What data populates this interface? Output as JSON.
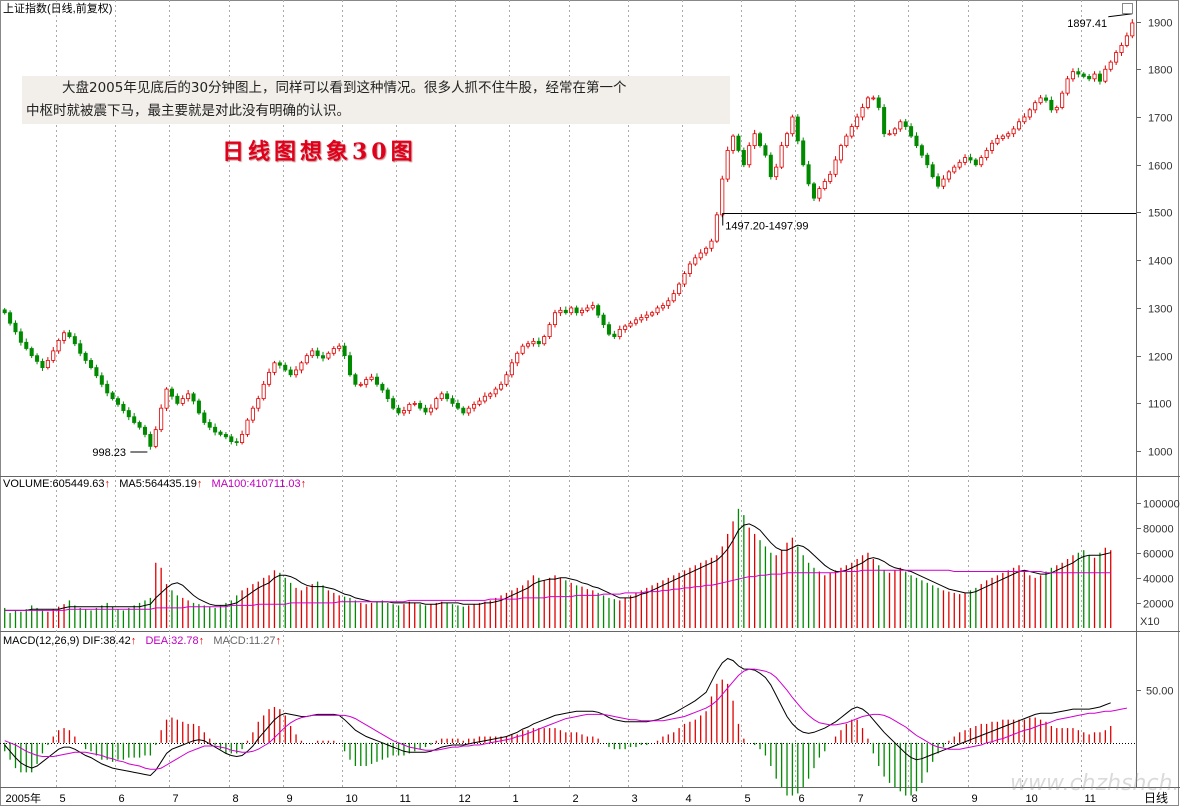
{
  "header": {
    "title": "上证指数(日线,前复权)",
    "note_line1": "大盘2005年见底后的30分钟图上，同样可以看到这种情况。很多人抓不住牛股，经常在第一个",
    "note_line2": "中枢时就被震下马，最主要就是对此没有明确的认识。",
    "red_title": "日线图想象30图"
  },
  "volume_info": {
    "volume": "VOLUME:605449.63",
    "ma5": "MA5:564435.19",
    "ma100": "MA100:410711.03"
  },
  "macd_info": {
    "name": "MACD(12,26,9)",
    "dif": "DIF:38.42",
    "dea": "DEA:32.78",
    "macd": "MACD:11.27"
  },
  "watermark": "www.chzhshch.net",
  "chart_data": [
    {
      "type": "candlestick",
      "ylim": [
        950,
        1920
      ],
      "yticks": [
        1000,
        1100,
        1200,
        1300,
        1400,
        1500,
        1600,
        1700,
        1800,
        1900
      ],
      "ytick_labels": [
        "1000",
        "1100",
        "1200",
        "1300",
        "1400",
        "1500",
        "1600",
        "1700",
        "1800",
        "1900"
      ],
      "annotations": [
        {
          "text": "998.23",
          "value": 998.23
        },
        {
          "text": "1897.41",
          "value": 1897.41
        },
        {
          "text": "1497.20-1497.99",
          "value": 1497.99
        }
      ],
      "close": [
        1290,
        1268,
        1250,
        1228,
        1215,
        1200,
        1188,
        1175,
        1190,
        1210,
        1232,
        1248,
        1240,
        1225,
        1205,
        1190,
        1175,
        1158,
        1140,
        1122,
        1110,
        1098,
        1085,
        1072,
        1060,
        1050,
        1035,
        1010,
        1045,
        1090,
        1130,
        1115,
        1100,
        1110,
        1120,
        1105,
        1080,
        1060,
        1050,
        1040,
        1035,
        1030,
        1020,
        1018,
        1035,
        1065,
        1090,
        1110,
        1140,
        1165,
        1185,
        1180,
        1170,
        1160,
        1170,
        1185,
        1200,
        1210,
        1200,
        1195,
        1205,
        1215,
        1220,
        1200,
        1160,
        1140,
        1140,
        1150,
        1155,
        1140,
        1128,
        1110,
        1090,
        1080,
        1085,
        1098,
        1100,
        1090,
        1082,
        1090,
        1110,
        1120,
        1110,
        1100,
        1090,
        1080,
        1090,
        1098,
        1105,
        1115,
        1120,
        1130,
        1140,
        1160,
        1185,
        1205,
        1220,
        1225,
        1230,
        1225,
        1240,
        1265,
        1290,
        1295,
        1290,
        1300,
        1290,
        1295,
        1300,
        1305,
        1285,
        1265,
        1245,
        1240,
        1255,
        1262,
        1268,
        1275,
        1280,
        1285,
        1290,
        1300,
        1305,
        1315,
        1330,
        1350,
        1372,
        1392,
        1405,
        1415,
        1425,
        1440,
        1495,
        1570,
        1630,
        1660,
        1630,
        1600,
        1640,
        1665,
        1640,
        1620,
        1575,
        1595,
        1640,
        1665,
        1700,
        1650,
        1600,
        1560,
        1530,
        1550,
        1565,
        1580,
        1610,
        1640,
        1660,
        1680,
        1700,
        1720,
        1740,
        1740,
        1720,
        1665,
        1665,
        1675,
        1690,
        1680,
        1660,
        1640,
        1620,
        1600,
        1575,
        1555,
        1570,
        1585,
        1595,
        1605,
        1615,
        1610,
        1600,
        1615,
        1630,
        1645,
        1655,
        1660,
        1665,
        1675,
        1690,
        1700,
        1715,
        1730,
        1740,
        1735,
        1715,
        1720,
        1750,
        1780,
        1795,
        1790,
        1785,
        1780,
        1790,
        1775,
        1800,
        1815,
        1835,
        1850,
        1870,
        1897
      ]
    },
    {
      "type": "bar",
      "ylim": [
        0,
        110000
      ],
      "yticks": [
        20000,
        40000,
        60000,
        80000,
        100000
      ],
      "ytick_labels": [
        "20000",
        "40000",
        "60000",
        "80000",
        "100000"
      ],
      "unit_label": "X10",
      "series": [
        {
          "name": "VOLUME",
          "value": 605449.63
        },
        {
          "name": "MA5",
          "value": 564435.19
        },
        {
          "name": "MA100",
          "value": 410711.03
        }
      ],
      "volume": [
        16,
        12,
        14,
        13,
        15,
        18,
        16,
        14,
        13,
        15,
        17,
        19,
        22,
        18,
        16,
        15,
        14,
        16,
        18,
        20,
        17,
        15,
        14,
        16,
        18,
        20,
        22,
        24,
        52,
        48,
        35,
        30,
        26,
        24,
        22,
        20,
        19,
        18,
        17,
        16,
        18,
        20,
        22,
        26,
        30,
        32,
        35,
        37,
        40,
        42,
        46,
        44,
        40,
        36,
        32,
        30,
        33,
        35,
        37,
        34,
        30,
        28,
        26,
        25,
        24,
        22,
        20,
        19,
        20,
        21,
        22,
        20,
        19,
        18,
        19,
        21,
        20,
        19,
        18,
        19,
        20,
        21,
        20,
        19,
        18,
        17,
        18,
        19,
        20,
        21,
        22,
        24,
        26,
        28,
        30,
        32,
        34,
        38,
        42,
        40,
        38,
        40,
        42,
        40,
        38,
        36,
        34,
        33,
        31,
        30,
        28,
        26,
        24,
        23,
        22,
        24,
        26,
        28,
        30,
        32,
        34,
        36,
        38,
        40,
        42,
        44,
        46,
        48,
        50,
        52,
        54,
        56,
        58,
        65,
        75,
        85,
        95,
        90,
        80,
        75,
        70,
        65,
        60,
        58,
        62,
        68,
        72,
        65,
        58,
        52,
        48,
        45,
        42,
        44,
        46,
        48,
        50,
        52,
        55,
        58,
        60,
        55,
        50,
        46,
        44,
        46,
        48,
        45,
        42,
        40,
        38,
        36,
        34,
        32,
        30,
        29,
        28,
        27,
        28,
        30,
        32,
        35,
        38,
        40,
        42,
        44,
        46,
        48,
        50,
        46,
        42,
        40,
        42,
        45,
        48,
        50,
        52,
        55,
        58,
        60,
        62,
        58,
        56,
        60,
        64,
        62
      ],
      "ma5_line": [
        14,
        14,
        14,
        14,
        14,
        15,
        15,
        15,
        15,
        15,
        15,
        16,
        17,
        17,
        17,
        17,
        17,
        17,
        17,
        17,
        17,
        17,
        17,
        17,
        17,
        17,
        18,
        19,
        24,
        28,
        32,
        35,
        36,
        34,
        30,
        26,
        23,
        21,
        19,
        18,
        18,
        18,
        19,
        20,
        23,
        26,
        29,
        32,
        34,
        36,
        40,
        42,
        42,
        41,
        39,
        36,
        34,
        33,
        33,
        33,
        32,
        31,
        29,
        27,
        26,
        24,
        23,
        22,
        21,
        21,
        21,
        21,
        20,
        20,
        20,
        20,
        20,
        20,
        19,
        19,
        19,
        20,
        20,
        20,
        20,
        19,
        19,
        19,
        19,
        20,
        20,
        21,
        22,
        24,
        26,
        28,
        30,
        32,
        35,
        37,
        38,
        39,
        39,
        40,
        40,
        39,
        38,
        36,
        35,
        33,
        32,
        30,
        28,
        26,
        24,
        24,
        24,
        25,
        27,
        28,
        30,
        32,
        34,
        36,
        38,
        40,
        42,
        44,
        46,
        48,
        50,
        52,
        54,
        58,
        63,
        70,
        78,
        82,
        83,
        81,
        78,
        73,
        68,
        64,
        62,
        62,
        64,
        66,
        65,
        62,
        58,
        54,
        50,
        47,
        45,
        45,
        46,
        48,
        50,
        52,
        55,
        56,
        55,
        53,
        50,
        48,
        47,
        46,
        45,
        43,
        41,
        39,
        37,
        35,
        33,
        31,
        30,
        29,
        28,
        28,
        29,
        31,
        33,
        35,
        37,
        39,
        41,
        43,
        45,
        46,
        45,
        44,
        43,
        43,
        44,
        46,
        48,
        50,
        52,
        55,
        57,
        58,
        58,
        58,
        59,
        60
      ],
      "ma100_line": [
        14,
        14,
        14,
        14,
        14,
        14,
        14,
        14,
        14,
        14,
        14,
        14,
        15,
        15,
        15,
        15,
        15,
        15,
        15,
        15,
        15,
        15,
        15,
        15,
        15,
        15,
        15,
        15,
        16,
        16,
        16,
        16,
        16,
        16,
        17,
        17,
        17,
        17,
        17,
        17,
        17,
        17,
        18,
        18,
        18,
        18,
        18,
        19,
        19,
        19,
        19,
        19,
        19,
        20,
        20,
        20,
        20,
        20,
        20,
        20,
        20,
        20,
        21,
        21,
        21,
        21,
        21,
        21,
        21,
        21,
        21,
        21,
        21,
        21,
        21,
        22,
        22,
        22,
        22,
        22,
        22,
        22,
        22,
        22,
        22,
        22,
        22,
        22,
        22,
        22,
        23,
        23,
        23,
        23,
        23,
        23,
        24,
        24,
        24,
        24,
        24,
        25,
        25,
        25,
        25,
        25,
        26,
        26,
        26,
        26,
        26,
        27,
        27,
        27,
        27,
        28,
        28,
        28,
        28,
        29,
        29,
        29,
        30,
        30,
        31,
        31,
        32,
        32,
        33,
        33,
        34,
        34,
        35,
        36,
        37,
        38,
        39,
        40,
        41,
        41,
        42,
        42,
        43,
        43,
        43,
        44,
        44,
        44,
        44,
        44,
        44,
        44,
        44,
        44,
        44,
        45,
        45,
        45,
        45,
        46,
        46,
        46,
        46,
        46,
        46,
        46,
        46,
        46,
        46,
        46,
        46,
        46,
        46,
        46,
        46,
        46,
        45,
        45,
        45,
        45,
        45,
        45,
        45,
        45,
        45,
        45,
        45,
        45,
        45,
        45,
        45,
        45,
        45,
        44,
        44,
        44,
        44,
        44,
        44,
        44,
        44,
        44,
        44,
        44,
        44,
        44
      ]
    },
    {
      "type": "line",
      "ylim": [
        -40,
        90
      ],
      "yticks": [
        50
      ],
      "ytick_labels": [
        "50.00"
      ],
      "series": [
        {
          "name": "DIF",
          "value": 38.42
        },
        {
          "name": "DEA",
          "value": 32.78
        },
        {
          "name": "MACD",
          "value": 11.27
        }
      ],
      "dif": [
        -2,
        -8,
        -14,
        -19,
        -22,
        -24,
        -22,
        -18,
        -14,
        -10,
        -6,
        -4,
        -4,
        -6,
        -9,
        -12,
        -14,
        -17,
        -20,
        -22,
        -24,
        -25,
        -26,
        -27,
        -28,
        -29,
        -30,
        -31,
        -26,
        -18,
        -10,
        -6,
        -4,
        -2,
        0,
        2,
        3,
        2,
        -1,
        -4,
        -7,
        -10,
        -12,
        -13,
        -12,
        -8,
        -3,
        4,
        10,
        16,
        22,
        26,
        28,
        27,
        26,
        25,
        25,
        26,
        27,
        27,
        27,
        27,
        26,
        22,
        17,
        12,
        9,
        6,
        4,
        2,
        0,
        -2,
        -4,
        -6,
        -8,
        -9,
        -9,
        -9,
        -9,
        -8,
        -6,
        -4,
        -3,
        -2,
        -2,
        -2,
        -1,
        0,
        1,
        2,
        3,
        4,
        5,
        6,
        8,
        10,
        13,
        15,
        18,
        20,
        22,
        24,
        26,
        27,
        28,
        29,
        30,
        30,
        30,
        30,
        29,
        27,
        24,
        22,
        21,
        20,
        20,
        20,
        20,
        20,
        21,
        22,
        24,
        26,
        28,
        31,
        34,
        37,
        40,
        44,
        48,
        58,
        68,
        76,
        80,
        78,
        73,
        70,
        70,
        69,
        66,
        62,
        55,
        45,
        35,
        25,
        18,
        13,
        10,
        9,
        10,
        12,
        14,
        17,
        20,
        24,
        28,
        32,
        34,
        32,
        28,
        22,
        16,
        10,
        5,
        0,
        -5,
        -10,
        -14,
        -16,
        -15,
        -13,
        -11,
        -9,
        -7,
        -5,
        -3,
        -1,
        1,
        3,
        5,
        7,
        9,
        11,
        13,
        15,
        17,
        19,
        21,
        23,
        25,
        27,
        28,
        28,
        28,
        29,
        30,
        31,
        32,
        32,
        32,
        32,
        33,
        34,
        36,
        38
      ],
      "dea": [
        2,
        0,
        -2,
        -5,
        -8,
        -10,
        -12,
        -13,
        -13,
        -13,
        -12,
        -11,
        -10,
        -9,
        -9,
        -9,
        -10,
        -11,
        -12,
        -14,
        -15,
        -17,
        -18,
        -20,
        -21,
        -22,
        -24,
        -25,
        -25,
        -24,
        -21,
        -18,
        -15,
        -12,
        -9,
        -7,
        -5,
        -3,
        -3,
        -3,
        -4,
        -5,
        -7,
        -8,
        -9,
        -9,
        -8,
        -6,
        -3,
        0,
        5,
        10,
        15,
        19,
        22,
        24,
        25,
        26,
        26,
        26,
        26,
        26,
        26,
        26,
        25,
        23,
        20,
        17,
        14,
        11,
        8,
        5,
        2,
        0,
        -2,
        -4,
        -5,
        -6,
        -7,
        -7,
        -7,
        -6,
        -5,
        -4,
        -4,
        -3,
        -3,
        -2,
        -2,
        -1,
        0,
        1,
        2,
        3,
        4,
        6,
        7,
        9,
        11,
        13,
        15,
        17,
        19,
        21,
        23,
        24,
        25,
        26,
        27,
        27,
        27,
        27,
        26,
        25,
        24,
        23,
        22,
        22,
        21,
        21,
        21,
        21,
        21,
        22,
        23,
        24,
        25,
        27,
        29,
        31,
        33,
        36,
        40,
        46,
        52,
        58,
        64,
        68,
        70,
        70,
        69,
        68,
        66,
        62,
        56,
        50,
        43,
        37,
        31,
        26,
        22,
        19,
        18,
        17,
        17,
        18,
        19,
        21,
        23,
        25,
        26,
        27,
        27,
        26,
        24,
        21,
        18,
        15,
        11,
        7,
        4,
        1,
        -2,
        -4,
        -5,
        -6,
        -6,
        -6,
        -5,
        -4,
        -3,
        -2,
        0,
        1,
        3,
        4,
        6,
        8,
        10,
        12,
        13,
        15,
        17,
        18,
        20,
        22,
        23,
        24,
        25,
        26,
        27,
        28,
        28,
        29,
        30,
        30,
        31,
        32,
        33
      ]
    }
  ],
  "x_axis": {
    "labels": [
      "2005年",
      "5",
      "6",
      "7",
      "8",
      "9",
      "10",
      "11",
      "12",
      "1",
      "2",
      "3",
      "4",
      "5",
      "6",
      "7",
      "8",
      "9",
      "10",
      "11"
    ],
    "period_label": "日线"
  }
}
